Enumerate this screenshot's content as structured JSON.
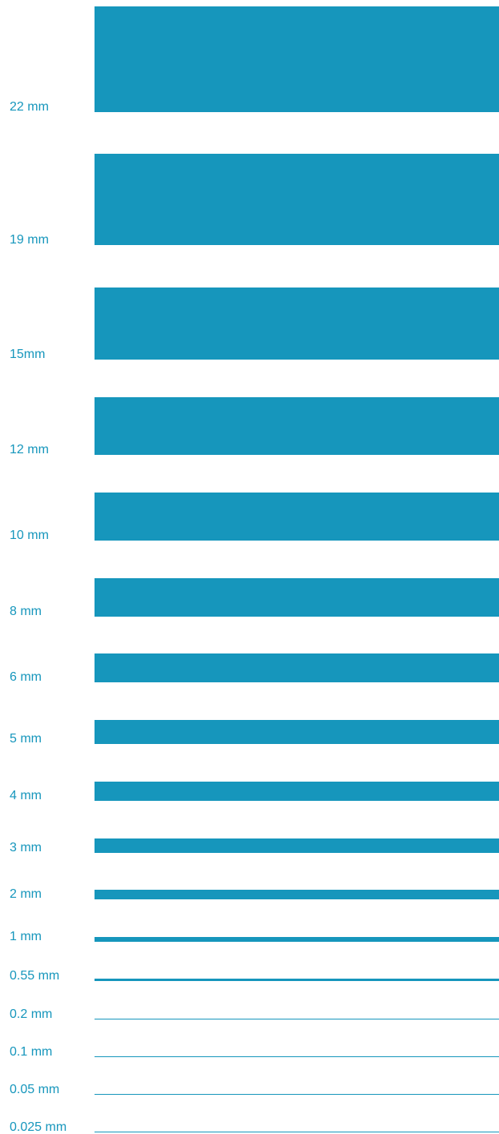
{
  "colors": {
    "bar": "#1696bc",
    "label": "#1696bc",
    "background": "#ffffff"
  },
  "thickness_unit": "mm",
  "rows": [
    {
      "label": "22 mm",
      "thickness_mm": 22
    },
    {
      "label": "19 mm",
      "thickness_mm": 19
    },
    {
      "label": "15mm",
      "thickness_mm": 15
    },
    {
      "label": "12 mm",
      "thickness_mm": 12
    },
    {
      "label": "10 mm",
      "thickness_mm": 10
    },
    {
      "label": "8 mm",
      "thickness_mm": 8
    },
    {
      "label": "6 mm",
      "thickness_mm": 6
    },
    {
      "label": "5 mm",
      "thickness_mm": 5
    },
    {
      "label": "4 mm",
      "thickness_mm": 4
    },
    {
      "label": "3 mm",
      "thickness_mm": 3
    },
    {
      "label": "2 mm",
      "thickness_mm": 2
    },
    {
      "label": "1 mm",
      "thickness_mm": 1
    },
    {
      "label": "0.55 mm",
      "thickness_mm": 0.55
    },
    {
      "label": "0.2 mm",
      "thickness_mm": 0.2
    },
    {
      "label": "0.1 mm",
      "thickness_mm": 0.1
    },
    {
      "label": "0.05 mm",
      "thickness_mm": 0.05
    },
    {
      "label": "0.025 mm",
      "thickness_mm": 0.025
    }
  ]
}
